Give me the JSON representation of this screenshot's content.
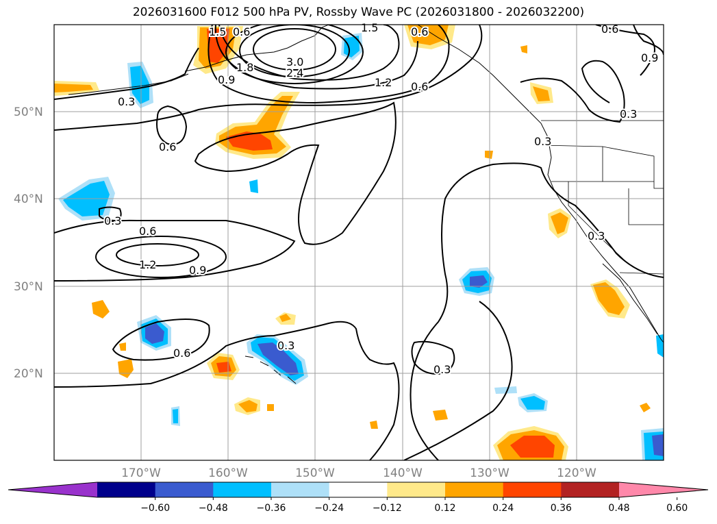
{
  "title": "2026031600 F012 500 hPa PV, Rossby Wave PC (2026031800 - 2026032200)",
  "map": {
    "lon_range": [
      -180,
      -110
    ],
    "lat_range": [
      10,
      60
    ],
    "lat_labels": [
      "50°N",
      "40°N",
      "30°N",
      "20°N"
    ],
    "lon_labels": [
      "170°W",
      "160°W",
      "150°W",
      "140°W",
      "130°W",
      "120°W"
    ],
    "contour_labels": [
      "1.5",
      "0.6",
      "0.6",
      "3.0",
      "2.4",
      "1.8",
      "0.9",
      "1.2",
      "0.6",
      "0.3",
      "0.3",
      "0.6",
      "0.3",
      "0.6",
      "1.2",
      "0.9",
      "0.3",
      "0.3",
      "0.6",
      "0.3",
      "0.3",
      "0.9",
      "1.5",
      "0.6"
    ]
  },
  "colorbar": {
    "ticks": [
      "−0.60",
      "−0.48",
      "−0.36",
      "−0.24",
      "−0.12",
      "0.12",
      "0.24",
      "0.36",
      "0.48",
      "0.60"
    ],
    "colors": [
      "#9932cc",
      "#00008b",
      "#3a5bcf",
      "#00bfff",
      "#aee0f8",
      "#ffffff",
      "#ffe98a",
      "#ffa500",
      "#ff4500",
      "#b22222",
      "#ff88aa"
    ]
  }
}
